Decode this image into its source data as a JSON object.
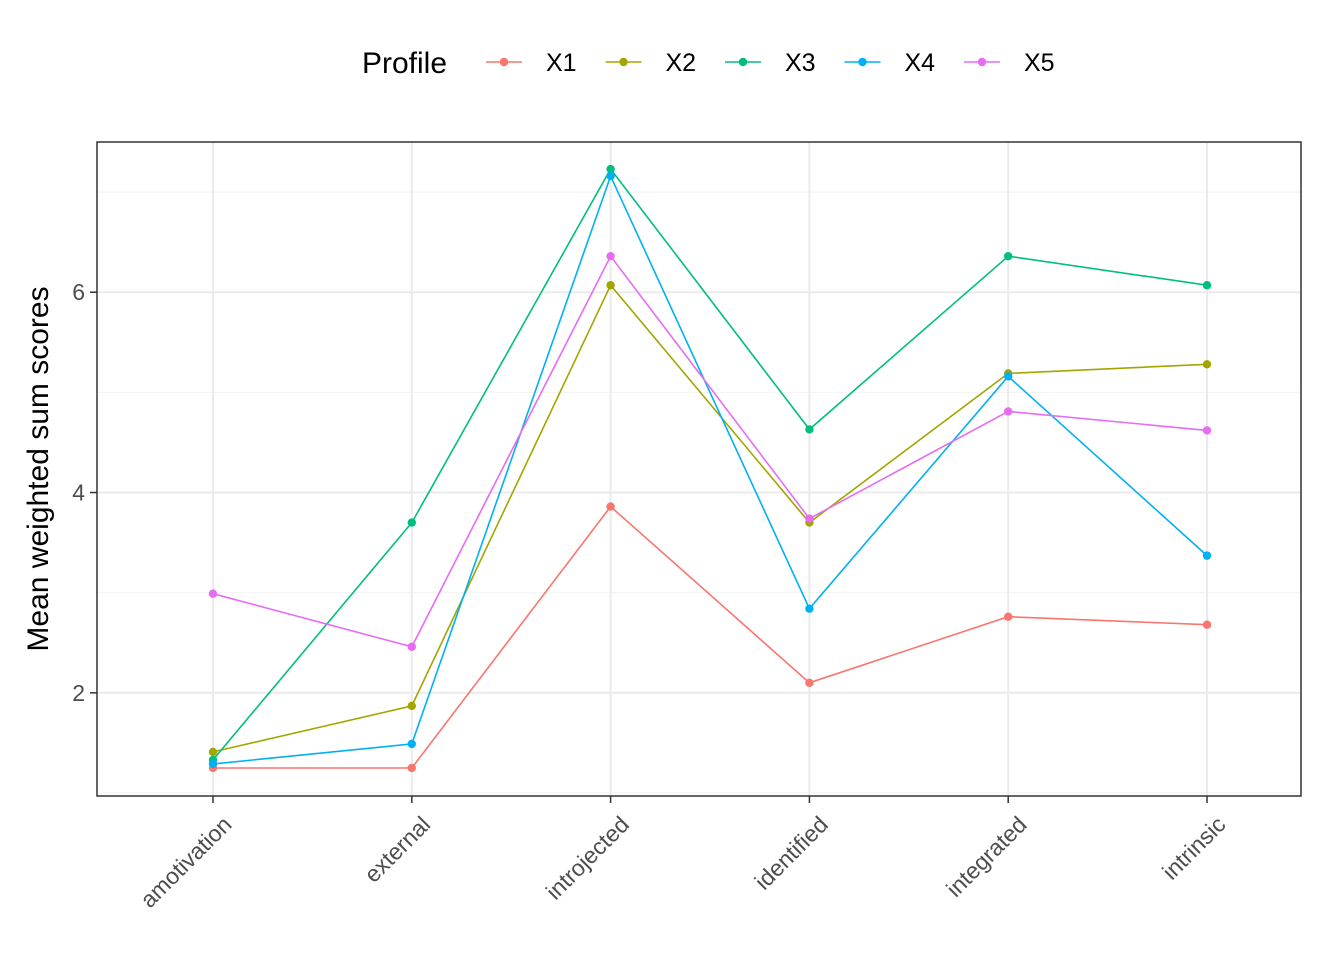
{
  "chart_data": {
    "type": "line",
    "xlabel": "",
    "ylabel": "Mean weighted sum scores",
    "categories": [
      "amotivation",
      "external",
      "introjected",
      "identified",
      "integrated",
      "intrinsic"
    ],
    "ylim": [
      0.97,
      7.5
    ],
    "yticks": [
      2,
      4,
      6
    ],
    "grid": true,
    "legend": {
      "title": "Profile",
      "position": "top"
    },
    "series": [
      {
        "name": "X1",
        "color": "#F8766D",
        "values": [
          1.25,
          1.25,
          3.86,
          2.1,
          2.76,
          2.68
        ]
      },
      {
        "name": "X2",
        "color": "#A3A500",
        "values": [
          1.41,
          1.87,
          6.07,
          3.7,
          5.19,
          5.28
        ]
      },
      {
        "name": "X3",
        "color": "#00BF7D",
        "values": [
          1.33,
          3.7,
          7.23,
          4.63,
          6.36,
          6.07
        ]
      },
      {
        "name": "X4",
        "color": "#00B0F6",
        "values": [
          1.29,
          1.49,
          7.16,
          2.84,
          5.16,
          3.37
        ]
      },
      {
        "name": "X5",
        "color": "#E76BF3",
        "values": [
          2.99,
          2.46,
          6.36,
          3.74,
          4.81,
          4.62
        ]
      }
    ]
  }
}
